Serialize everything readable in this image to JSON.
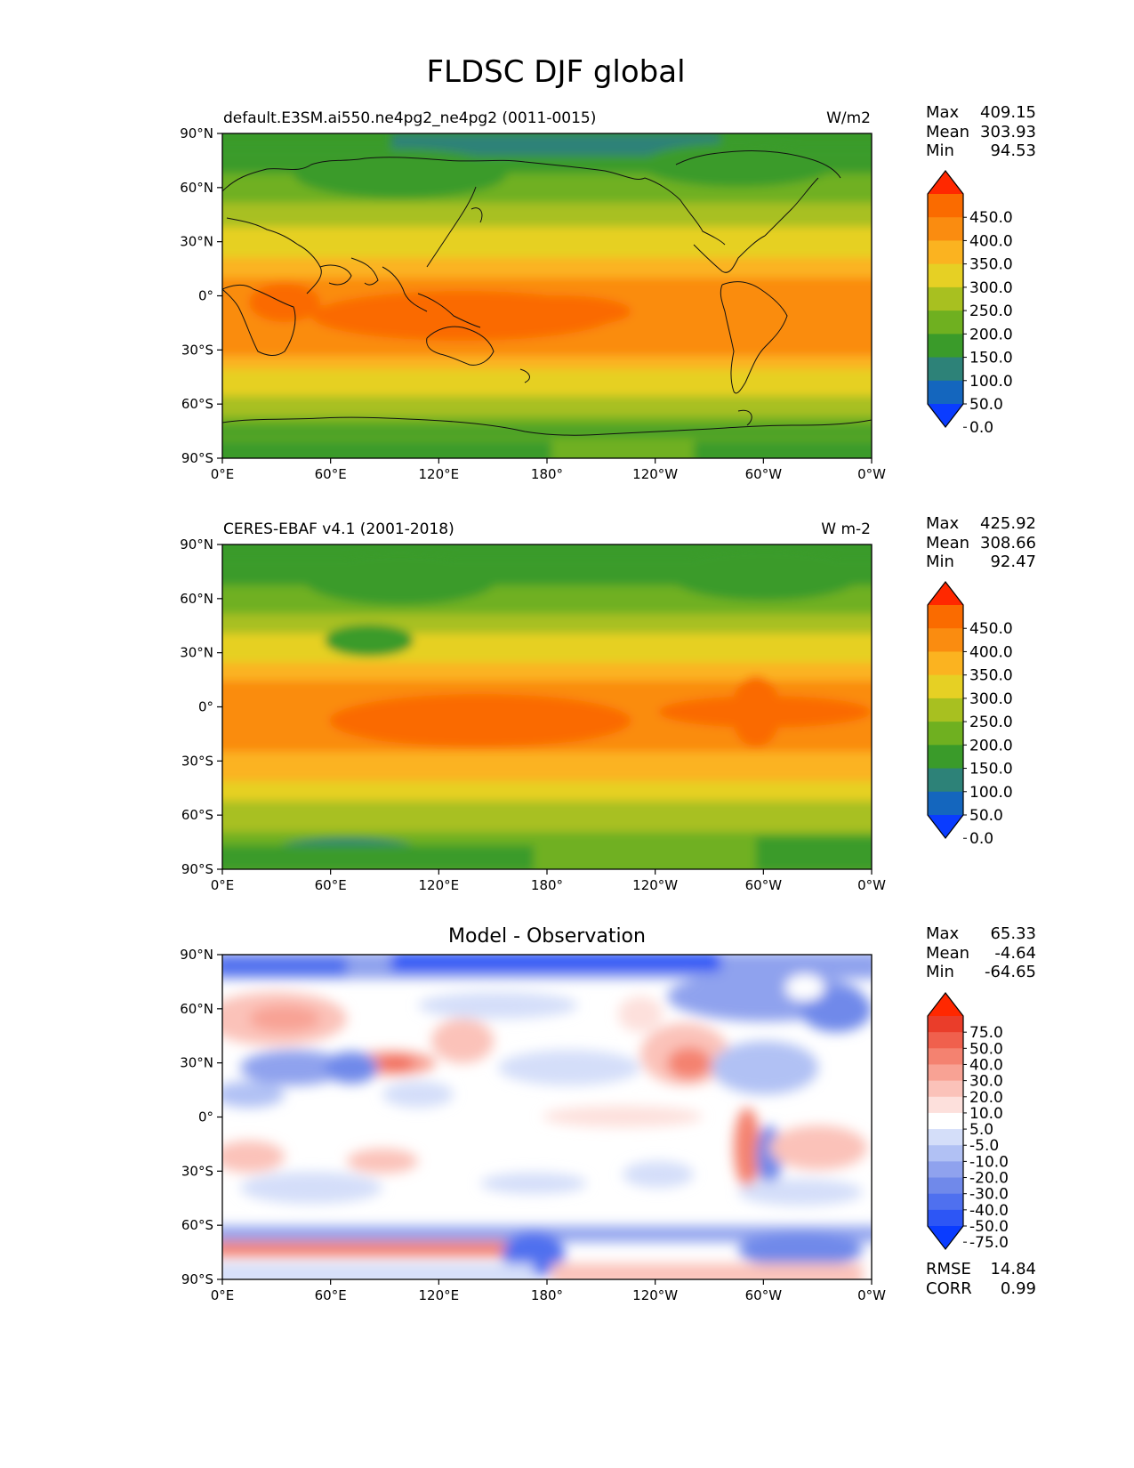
{
  "title": "FLDSC DJF global",
  "axes": {
    "lat_ticks": [
      90,
      60,
      30,
      0,
      -30,
      -60,
      -90
    ],
    "lat_labels": [
      "90°N",
      "60°N",
      "30°N",
      "0°",
      "30°S",
      "60°S",
      "90°S"
    ],
    "lon_ticks": [
      0,
      60,
      120,
      180,
      240,
      300,
      360
    ],
    "lon_labels": [
      "0°E",
      "60°E",
      "120°E",
      "180°",
      "120°W",
      "60°W",
      "0°W"
    ],
    "lat_range": [
      -90,
      90
    ],
    "lon_range": [
      0,
      360
    ]
  },
  "palettes": {
    "field": [
      "#0a3cff",
      "#1466be",
      "#2d8278",
      "#3a9b2a",
      "#6fb020",
      "#a8c020",
      "#e6d024",
      "#fbb320",
      "#fa8c10",
      "#fa6b00",
      "#ff2800"
    ],
    "diff": [
      "#0a3cff",
      "#2d56f5",
      "#4f70ef",
      "#7089ea",
      "#8fa2ee",
      "#b1c1f4",
      "#d4def9",
      "#ffffff",
      "#fde0dc",
      "#fbc2b9",
      "#f8a294",
      "#f48270",
      "#f0604d",
      "#ea3d2a",
      "#ff2800"
    ]
  },
  "panels": [
    {
      "left_title": "default.E3SM.ai550.ne4pg2_ne4pg2 (0011-0015)",
      "center_title": "",
      "right_title": "W/m2",
      "stats_labels": [
        "Max",
        "Mean",
        "Min"
      ],
      "stats_values": [
        "409.15",
        "303.93",
        "94.53"
      ],
      "colorbar_labels": [
        "450.0",
        "400.0",
        "350.0",
        "300.0",
        "250.0",
        "200.0",
        "150.0",
        "100.0",
        "50.0",
        "0.0"
      ],
      "metrics_labels": [],
      "metrics_values": []
    },
    {
      "left_title": "CERES-EBAF v4.1 (2001-2018)",
      "center_title": "",
      "right_title": "W m-2",
      "stats_labels": [
        "Max",
        "Mean",
        "Min"
      ],
      "stats_values": [
        "425.92",
        "308.66",
        "92.47"
      ],
      "colorbar_labels": [
        "450.0",
        "400.0",
        "350.0",
        "300.0",
        "250.0",
        "200.0",
        "150.0",
        "100.0",
        "50.0",
        "0.0"
      ],
      "metrics_labels": [],
      "metrics_values": []
    },
    {
      "left_title": "",
      "center_title": "Model - Observation",
      "right_title": "",
      "stats_labels": [
        "Max",
        "Mean",
        "Min"
      ],
      "stats_values": [
        "65.33",
        "-4.64",
        "-64.65"
      ],
      "colorbar_labels": [
        "75.0",
        "50.0",
        "40.0",
        "30.0",
        "20.0",
        "10.0",
        "5.0",
        "-5.0",
        "-10.0",
        "-20.0",
        "-30.0",
        "-40.0",
        "-50.0",
        "-75.0"
      ],
      "metrics_labels": [
        "RMSE",
        "CORR"
      ],
      "metrics_values": [
        "14.84",
        "0.99"
      ]
    }
  ]
}
